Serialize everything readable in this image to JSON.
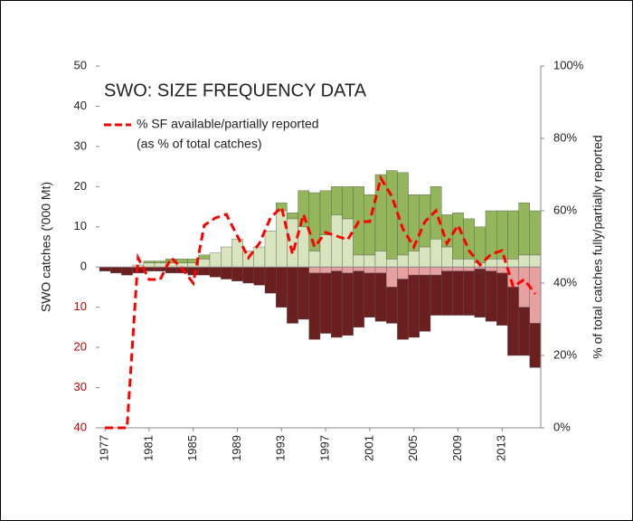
{
  "chart_data": {
    "type": "bar",
    "title": "SWO: SIZE FREQUENCY DATA",
    "y_label": "SWO catches ('000 Mt)",
    "y2_label": "% of total catches fully/partially reported",
    "x": [
      1977,
      1978,
      1979,
      1980,
      1981,
      1982,
      1983,
      1984,
      1985,
      1986,
      1987,
      1988,
      1989,
      1990,
      1991,
      1992,
      1993,
      1994,
      1995,
      1996,
      1997,
      1998,
      1999,
      2000,
      2001,
      2002,
      2003,
      2004,
      2005,
      2006,
      2007,
      2008,
      2009,
      2010,
      2011,
      2012,
      2013,
      2014,
      2015,
      2016
    ],
    "xlim": [
      1976.5,
      2016.5
    ],
    "xticks": [
      1977,
      1981,
      1985,
      1989,
      1993,
      1997,
      2001,
      2005,
      2009,
      2013
    ],
    "ylim": [
      -40,
      50
    ],
    "yticks": [
      {
        "value": -40,
        "label": "40"
      },
      {
        "value": -30,
        "label": "30"
      },
      {
        "value": -20,
        "label": "20"
      },
      {
        "value": -10,
        "label": "10"
      },
      0,
      10,
      20,
      30,
      40,
      50
    ],
    "negative_tick_color": "#c00000",
    "y2lim": [
      0,
      100
    ],
    "y2ticks": [
      {
        "value": 0,
        "label": "0%"
      },
      {
        "value": 20,
        "label": "20%"
      },
      {
        "value": 40,
        "label": "40%"
      },
      {
        "value": 60,
        "label": "60%"
      },
      {
        "value": 80,
        "label": "80%"
      },
      {
        "value": 100,
        "label": "100%"
      }
    ],
    "legend_position": "upper left",
    "legend_note": "(as % of total catches)",
    "series": [
      {
        "color": "#d7e4bd",
        "values": [
          0,
          0,
          0,
          0.5,
          1,
          1,
          1,
          1,
          1,
          2,
          3.5,
          5,
          7,
          4,
          5,
          9,
          14,
          12,
          10,
          4,
          8,
          13,
          12,
          3,
          3,
          4,
          2,
          3,
          4,
          5,
          7,
          5,
          2,
          2,
          1,
          2,
          2,
          2,
          3,
          3
        ]
      },
      {
        "color": "#93b65a",
        "values": [
          0,
          0,
          0,
          0,
          0.5,
          0.5,
          1,
          1,
          1,
          1,
          0,
          0,
          0,
          0,
          0,
          0,
          2,
          1.5,
          9,
          14.5,
          11,
          7,
          8,
          17,
          15,
          19,
          22,
          20.5,
          14,
          13,
          13,
          8,
          11.5,
          10,
          9,
          12,
          12,
          12,
          13,
          11
        ]
      },
      {
        "color": "#e6a0a0",
        "values": [
          0,
          0,
          0,
          0,
          0,
          0,
          0,
          0,
          0,
          0,
          0,
          0,
          0,
          0,
          0,
          0,
          0,
          0,
          0,
          -1.5,
          -1.5,
          -1,
          -1.5,
          -1,
          -1.5,
          -1.5,
          -5,
          -3,
          -2,
          -2,
          -2,
          -1,
          -1,
          -1,
          -0.5,
          -1,
          -1.5,
          -5,
          -10,
          -14
        ]
      },
      {
        "color": "#6b1f1f",
        "values": [
          -1,
          -1.5,
          -2,
          -1.5,
          -1,
          -1,
          -1.5,
          -1.5,
          -2,
          -2,
          -2.5,
          -3,
          -3.5,
          -4,
          -4.5,
          -6.5,
          -10,
          -14,
          -13,
          -16.5,
          -15,
          -16.5,
          -15.5,
          -14,
          -11,
          -12,
          -9,
          -15,
          -15.5,
          -14,
          -10,
          -11,
          -11,
          -11,
          -12,
          -12.5,
          -13,
          -17,
          -12,
          -11
        ]
      },
      {
        "name": "% SF available/partially reported",
        "type": "line",
        "axis": "y2",
        "color": "#ff0000",
        "dashed": true,
        "values": [
          0,
          0,
          0,
          47,
          41,
          41,
          47,
          44,
          40,
          56,
          58,
          59,
          53,
          47,
          51,
          58,
          61,
          48,
          59,
          50,
          54,
          53,
          52,
          57,
          57,
          69,
          64,
          55,
          50,
          57,
          60,
          51,
          56,
          49,
          45,
          48,
          49,
          39,
          41,
          37
        ]
      }
    ]
  }
}
